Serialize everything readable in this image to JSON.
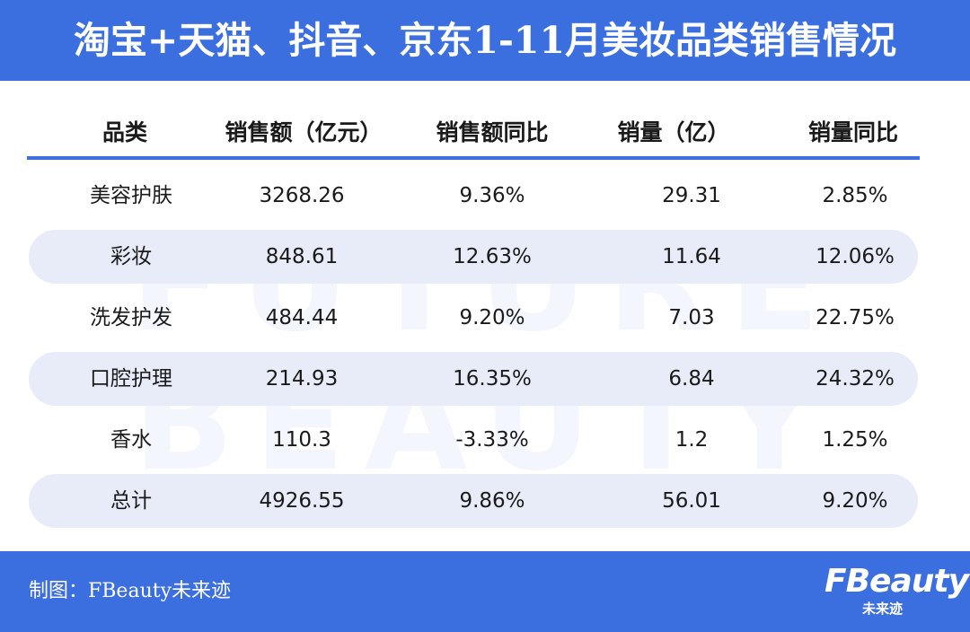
{
  "header": {
    "title": "淘宝+天猫、抖音、京东1-11月美妆品类销售情况"
  },
  "watermark": {
    "line1": "FUTURE",
    "line2": "BEAUTY"
  },
  "table": {
    "columns": [
      "品类",
      "销售额（亿元）",
      "销售额同比",
      "销量（亿）",
      "销量同比"
    ],
    "rows": [
      [
        "美容护肤",
        "3268.26",
        "9.36%",
        "29.31",
        "2.85%"
      ],
      [
        "彩妆",
        "848.61",
        "12.63%",
        "11.64",
        "12.06%"
      ],
      [
        "洗发护发",
        "484.44",
        "9.20%",
        "7.03",
        "22.75%"
      ],
      [
        "口腔护理",
        "214.93",
        "16.35%",
        "6.84",
        "24.32%"
      ],
      [
        "香水",
        "110.3",
        "-3.33%",
        "1.2",
        "1.25%"
      ],
      [
        "总计",
        "4926.55",
        "9.86%",
        "56.01",
        "9.20%"
      ]
    ]
  },
  "footer": {
    "credit": "制图：FBeauty未来迹",
    "logo_main": "FBeauty",
    "logo_sub": "未来迹"
  },
  "colors": {
    "accent": "#3b6fe0",
    "row_shade": "#e8ecf9",
    "text": "#1a1a1a",
    "header_text": "#ffffff"
  }
}
